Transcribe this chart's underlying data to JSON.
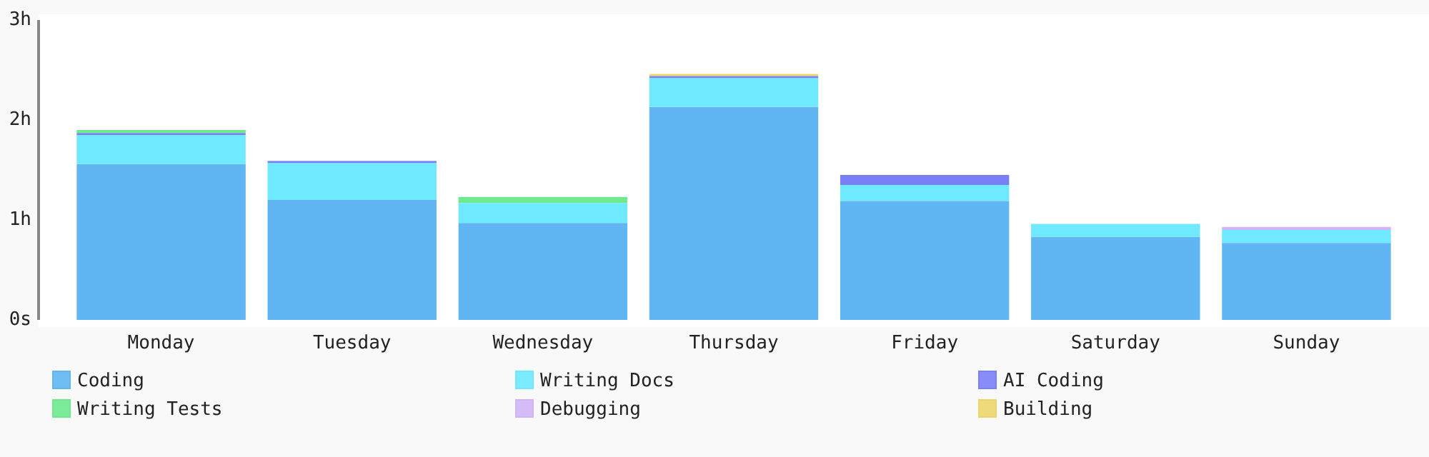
{
  "chart_data": {
    "type": "bar",
    "stacked": true,
    "categories": [
      "Monday",
      "Tuesday",
      "Wednesday",
      "Thursday",
      "Friday",
      "Saturday",
      "Sunday"
    ],
    "series": [
      {
        "name": "Coding",
        "color": "#60b6f2",
        "values": [
          1.56,
          1.2,
          0.97,
          2.13,
          1.19,
          0.83,
          0.77
        ]
      },
      {
        "name": "Writing Docs",
        "color": "#6fe9ff",
        "values": [
          0.29,
          0.37,
          0.2,
          0.29,
          0.16,
          0.13,
          0.13
        ]
      },
      {
        "name": "AI Coding",
        "color": "#7b7ff6",
        "values": [
          0.02,
          0.02,
          null,
          0.02,
          0.1,
          null,
          null
        ]
      },
      {
        "name": "Writing Tests",
        "color": "#6ee98e",
        "values": [
          0.03,
          null,
          0.06,
          null,
          null,
          null,
          null
        ]
      },
      {
        "name": "Debugging",
        "color": "#d0b4f6",
        "values": [
          null,
          null,
          null,
          null,
          null,
          null,
          0.03
        ]
      },
      {
        "name": "Building",
        "color": "#ecd66c",
        "values": [
          null,
          null,
          null,
          0.02,
          null,
          null,
          null
        ]
      }
    ],
    "ylim": [
      0,
      3
    ],
    "yticks": [
      {
        "value": 0,
        "label": "0s"
      },
      {
        "value": 1,
        "label": "1h"
      },
      {
        "value": 2,
        "label": "2h"
      },
      {
        "value": 3,
        "label": "3h"
      }
    ],
    "legend": "bottom"
  }
}
